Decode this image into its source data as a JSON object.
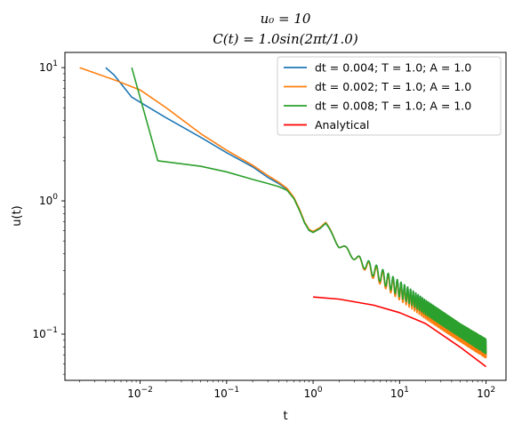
{
  "chart_data": {
    "type": "line",
    "title": {
      "line1": "u₀ = 10",
      "line2": "C(t) = 1.0sin(2πt/1.0)"
    },
    "xlabel": "t",
    "ylabel": "u(t)",
    "xscale": "log",
    "yscale": "log",
    "xlim": [
      0.00135,
      170
    ],
    "ylim": [
      0.045,
      13
    ],
    "x_ticks": [
      {
        "value": 0.01,
        "mantissa": "10",
        "exp": "−2"
      },
      {
        "value": 0.1,
        "mantissa": "10",
        "exp": "−1"
      },
      {
        "value": 1,
        "mantissa": "10",
        "exp": "0"
      },
      {
        "value": 10,
        "mantissa": "10",
        "exp": "1"
      },
      {
        "value": 100,
        "mantissa": "10",
        "exp": "2"
      }
    ],
    "y_ticks": [
      {
        "value": 0.1,
        "mantissa": "10",
        "exp": "−1"
      },
      {
        "value": 1,
        "mantissa": "10",
        "exp": "0"
      },
      {
        "value": 10,
        "mantissa": "10",
        "exp": "1"
      }
    ],
    "grid": false,
    "legend_position": "top-right",
    "series": [
      {
        "name": "dt = 0.004; T = 1.0; A = 1.0",
        "color": "#1f77b4",
        "points": [
          [
            0.004,
            10.0
          ],
          [
            0.005,
            8.8
          ],
          [
            0.008,
            6.0
          ],
          [
            0.02,
            4.2
          ],
          [
            0.05,
            3.0
          ],
          [
            0.1,
            2.3
          ],
          [
            0.2,
            1.8
          ],
          [
            0.3,
            1.5
          ],
          [
            0.4,
            1.35
          ],
          [
            0.5,
            1.22
          ],
          [
            0.6,
            1.05
          ],
          [
            0.7,
            0.85
          ],
          [
            0.8,
            0.68
          ],
          [
            0.9,
            0.6
          ],
          [
            1.0,
            0.58
          ],
          [
            1.2,
            0.62
          ],
          [
            1.4,
            0.68
          ]
        ],
        "envelope": [
          [
            1.4,
            0.67,
            0.68
          ],
          [
            2.0,
            0.44,
            0.5
          ],
          [
            3.0,
            0.36,
            0.4
          ],
          [
            5.0,
            0.26,
            0.34
          ],
          [
            10.0,
            0.185,
            0.25
          ],
          [
            20.0,
            0.135,
            0.18
          ],
          [
            50.0,
            0.092,
            0.118
          ],
          [
            100.0,
            0.068,
            0.09
          ]
        ]
      },
      {
        "name": "dt = 0.002; T = 1.0; A = 1.0",
        "color": "#ff7f0e",
        "points": [
          [
            0.002,
            10.0
          ],
          [
            0.005,
            8.1
          ],
          [
            0.01,
            6.8
          ],
          [
            0.02,
            5.0
          ],
          [
            0.05,
            3.2
          ],
          [
            0.1,
            2.4
          ],
          [
            0.2,
            1.85
          ],
          [
            0.3,
            1.55
          ],
          [
            0.4,
            1.38
          ],
          [
            0.5,
            1.24
          ],
          [
            0.6,
            1.06
          ],
          [
            0.7,
            0.86
          ],
          [
            0.8,
            0.69
          ],
          [
            0.9,
            0.61
          ],
          [
            1.0,
            0.59
          ],
          [
            1.2,
            0.63
          ],
          [
            1.4,
            0.69
          ]
        ],
        "envelope": [
          [
            1.4,
            0.68,
            0.69
          ],
          [
            2.0,
            0.44,
            0.5
          ],
          [
            3.0,
            0.36,
            0.4
          ],
          [
            5.0,
            0.26,
            0.33
          ],
          [
            10.0,
            0.18,
            0.24
          ],
          [
            20.0,
            0.13,
            0.17
          ],
          [
            50.0,
            0.088,
            0.112
          ],
          [
            100.0,
            0.066,
            0.085
          ]
        ]
      },
      {
        "name": "dt = 0.008; T = 1.0; A = 1.0",
        "color": "#2ca02c",
        "points": [
          [
            0.008,
            10.0
          ],
          [
            0.016,
            2.0
          ],
          [
            0.05,
            1.82
          ],
          [
            0.1,
            1.65
          ],
          [
            0.2,
            1.45
          ],
          [
            0.3,
            1.35
          ],
          [
            0.4,
            1.28
          ],
          [
            0.5,
            1.2
          ],
          [
            0.6,
            1.04
          ],
          [
            0.7,
            0.84
          ],
          [
            0.8,
            0.68
          ],
          [
            0.9,
            0.6
          ],
          [
            1.0,
            0.58
          ],
          [
            1.2,
            0.62
          ],
          [
            1.4,
            0.68
          ]
        ],
        "envelope": [
          [
            1.4,
            0.67,
            0.68
          ],
          [
            2.0,
            0.44,
            0.5
          ],
          [
            3.0,
            0.36,
            0.4
          ],
          [
            5.0,
            0.27,
            0.34
          ],
          [
            10.0,
            0.19,
            0.25
          ],
          [
            20.0,
            0.14,
            0.18
          ],
          [
            50.0,
            0.095,
            0.12
          ],
          [
            100.0,
            0.071,
            0.092
          ]
        ]
      },
      {
        "name": "Analytical",
        "color": "#ff0000",
        "points": [
          [
            1.0,
            0.19
          ],
          [
            2.0,
            0.183
          ],
          [
            5.0,
            0.165
          ],
          [
            10.0,
            0.145
          ],
          [
            20.0,
            0.12
          ],
          [
            50.0,
            0.08
          ],
          [
            100.0,
            0.057
          ]
        ]
      }
    ]
  }
}
